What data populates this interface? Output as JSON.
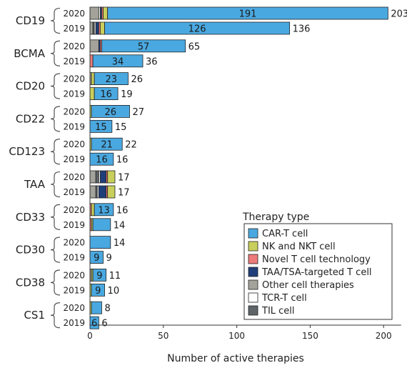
{
  "chart_data": {
    "type": "bar",
    "orientation": "horizontal",
    "stacked": true,
    "xlabel": "Number of active therapies",
    "xlim": [
      0,
      210
    ],
    "xticks": [
      0,
      50,
      100,
      150,
      200
    ],
    "legend": {
      "title": "Therapy type",
      "placement": "bottom-right",
      "entries": [
        {
          "name": "CAR-T cell",
          "color": "#4aa8e0"
        },
        {
          "name": "NK and NKT cell",
          "color": "#c9cf5c"
        },
        {
          "name": "Novel T cell technology",
          "color": "#ee7b7b"
        },
        {
          "name": "TAA/TSA-targeted T cell",
          "color": "#1f3f7a"
        },
        {
          "name": "Other cell therapies",
          "color": "#a3a39b"
        },
        {
          "name": "TCR-T cell",
          "color": "#ffffff"
        },
        {
          "name": "TIL cell",
          "color": "#5e6468"
        }
      ]
    },
    "segment_order": [
      "Other cell therapies",
      "TIL cell",
      "TCR-T cell",
      "TAA/TSA-targeted T cell",
      "Novel T cell technology",
      "NK and NKT cell",
      "CAR-T cell"
    ],
    "groups": [
      {
        "target": "CD19",
        "bars": [
          {
            "year": "2020",
            "total": 203,
            "car_t_label": "191",
            "segments": {
              "Other cell therapies": 6,
              "TIL cell": 0,
              "TCR-T cell": 1,
              "TAA/TSA-targeted T cell": 1,
              "Novel T cell technology": 1,
              "NK and NKT cell": 3,
              "CAR-T cell": 191
            }
          },
          {
            "year": "2019",
            "total": 136,
            "car_t_label": "126",
            "segments": {
              "Other cell therapies": 2,
              "TIL cell": 1,
              "TCR-T cell": 1,
              "TAA/TSA-targeted T cell": 2,
              "Novel T cell technology": 1,
              "NK and NKT cell": 3,
              "CAR-T cell": 126
            }
          }
        ]
      },
      {
        "target": "BCMA",
        "bars": [
          {
            "year": "2020",
            "total": 65,
            "car_t_label": "57",
            "segments": {
              "Other cell therapies": 6,
              "TIL cell": 0,
              "TCR-T cell": 0,
              "TAA/TSA-targeted T cell": 1,
              "Novel T cell technology": 1,
              "NK and NKT cell": 0,
              "CAR-T cell": 57
            }
          },
          {
            "year": "2019",
            "total": 36,
            "car_t_label": "34",
            "segments": {
              "Other cell therapies": 0,
              "TIL cell": 0,
              "TCR-T cell": 0,
              "TAA/TSA-targeted T cell": 0,
              "Novel T cell technology": 2,
              "NK and NKT cell": 0,
              "CAR-T cell": 34
            }
          }
        ]
      },
      {
        "target": "CD20",
        "bars": [
          {
            "year": "2020",
            "total": 26,
            "car_t_label": "23",
            "segments": {
              "Other cell therapies": 1,
              "TIL cell": 0,
              "TCR-T cell": 0,
              "TAA/TSA-targeted T cell": 0,
              "Novel T cell technology": 0,
              "NK and NKT cell": 2,
              "CAR-T cell": 23
            }
          },
          {
            "year": "2019",
            "total": 19,
            "car_t_label": "16",
            "segments": {
              "Other cell therapies": 0,
              "TIL cell": 0,
              "TCR-T cell": 0,
              "TAA/TSA-targeted T cell": 0,
              "Novel T cell technology": 0,
              "NK and NKT cell": 3,
              "CAR-T cell": 16
            }
          }
        ]
      },
      {
        "target": "CD22",
        "bars": [
          {
            "year": "2020",
            "total": 27,
            "car_t_label": "26",
            "segments": {
              "Other cell therapies": 0,
              "TIL cell": 0,
              "TCR-T cell": 0,
              "TAA/TSA-targeted T cell": 0,
              "Novel T cell technology": 0,
              "NK and NKT cell": 1,
              "CAR-T cell": 26
            }
          },
          {
            "year": "2019",
            "total": 15,
            "car_t_label": "15",
            "segments": {
              "Other cell therapies": 0,
              "TIL cell": 0,
              "TCR-T cell": 0,
              "TAA/TSA-targeted T cell": 0,
              "Novel T cell technology": 0,
              "NK and NKT cell": 0,
              "CAR-T cell": 15
            }
          }
        ]
      },
      {
        "target": "CD123",
        "bars": [
          {
            "year": "2020",
            "total": 22,
            "car_t_label": "21",
            "segments": {
              "Other cell therapies": 0,
              "TIL cell": 0,
              "TCR-T cell": 0,
              "TAA/TSA-targeted T cell": 0,
              "Novel T cell technology": 0,
              "NK and NKT cell": 1,
              "CAR-T cell": 21
            }
          },
          {
            "year": "2019",
            "total": 16,
            "car_t_label": "16",
            "segments": {
              "Other cell therapies": 0,
              "TIL cell": 0,
              "TCR-T cell": 0,
              "TAA/TSA-targeted T cell": 0,
              "Novel T cell technology": 0,
              "NK and NKT cell": 0,
              "CAR-T cell": 16
            }
          }
        ]
      },
      {
        "target": "TAA",
        "bars": [
          {
            "year": "2020",
            "total": 17,
            "car_t_label": "",
            "segments": {
              "Other cell therapies": 4,
              "TIL cell": 2,
              "TCR-T cell": 1,
              "TAA/TSA-targeted T cell": 4,
              "Novel T cell technology": 1,
              "NK and NKT cell": 5,
              "CAR-T cell": 0
            }
          },
          {
            "year": "2019",
            "total": 17,
            "car_t_label": "",
            "segments": {
              "Other cell therapies": 4,
              "TIL cell": 1,
              "TCR-T cell": 1,
              "TAA/TSA-targeted T cell": 5,
              "Novel T cell technology": 1,
              "NK and NKT cell": 5,
              "CAR-T cell": 0
            }
          }
        ]
      },
      {
        "target": "CD33",
        "bars": [
          {
            "year": "2020",
            "total": 16,
            "car_t_label": "13",
            "segments": {
              "Other cell therapies": 0,
              "TIL cell": 0,
              "TCR-T cell": 0,
              "TAA/TSA-targeted T cell": 0,
              "Novel T cell technology": 1,
              "NK and NKT cell": 2,
              "CAR-T cell": 13
            }
          },
          {
            "year": "2019",
            "total": 14,
            "car_t_label": "",
            "segments": {
              "Other cell therapies": 0,
              "TIL cell": 0,
              "TCR-T cell": 0,
              "TAA/TSA-targeted T cell": 0,
              "Novel T cell technology": 1,
              "NK and NKT cell": 1,
              "CAR-T cell": 12
            }
          }
        ]
      },
      {
        "target": "CD30",
        "bars": [
          {
            "year": "2020",
            "total": 14,
            "car_t_label": "",
            "segments": {
              "Other cell therapies": 0,
              "TIL cell": 0,
              "TCR-T cell": 0,
              "TAA/TSA-targeted T cell": 0,
              "Novel T cell technology": 0,
              "NK and NKT cell": 0,
              "CAR-T cell": 14
            }
          },
          {
            "year": "2019",
            "total": 9,
            "car_t_label": "9",
            "segments": {
              "Other cell therapies": 0,
              "TIL cell": 0,
              "TCR-T cell": 0,
              "TAA/TSA-targeted T cell": 0,
              "Novel T cell technology": 0,
              "NK and NKT cell": 0,
              "CAR-T cell": 9
            }
          }
        ]
      },
      {
        "target": "CD38",
        "bars": [
          {
            "year": "2020",
            "total": 11,
            "car_t_label": "9",
            "segments": {
              "Other cell therapies": 1,
              "TIL cell": 0,
              "TCR-T cell": 0,
              "TAA/TSA-targeted T cell": 0,
              "Novel T cell technology": 0,
              "NK and NKT cell": 1,
              "CAR-T cell": 9
            }
          },
          {
            "year": "2019",
            "total": 10,
            "car_t_label": "9",
            "segments": {
              "Other cell therapies": 0,
              "TIL cell": 0,
              "TCR-T cell": 0,
              "TAA/TSA-targeted T cell": 0,
              "Novel T cell technology": 0,
              "NK and NKT cell": 1,
              "CAR-T cell": 9
            }
          }
        ]
      },
      {
        "target": "CS1",
        "bars": [
          {
            "year": "2020",
            "total": 8,
            "car_t_label": "",
            "segments": {
              "Other cell therapies": 0,
              "TIL cell": 0,
              "TCR-T cell": 0,
              "TAA/TSA-targeted T cell": 0,
              "Novel T cell technology": 0,
              "NK and NKT cell": 1,
              "CAR-T cell": 7
            }
          },
          {
            "year": "2019",
            "total": 6,
            "car_t_label": "6",
            "segments": {
              "Other cell therapies": 0,
              "TIL cell": 0,
              "TCR-T cell": 0,
              "TAA/TSA-targeted T cell": 0,
              "Novel T cell technology": 0,
              "NK and NKT cell": 0,
              "CAR-T cell": 6
            }
          }
        ]
      }
    ]
  }
}
